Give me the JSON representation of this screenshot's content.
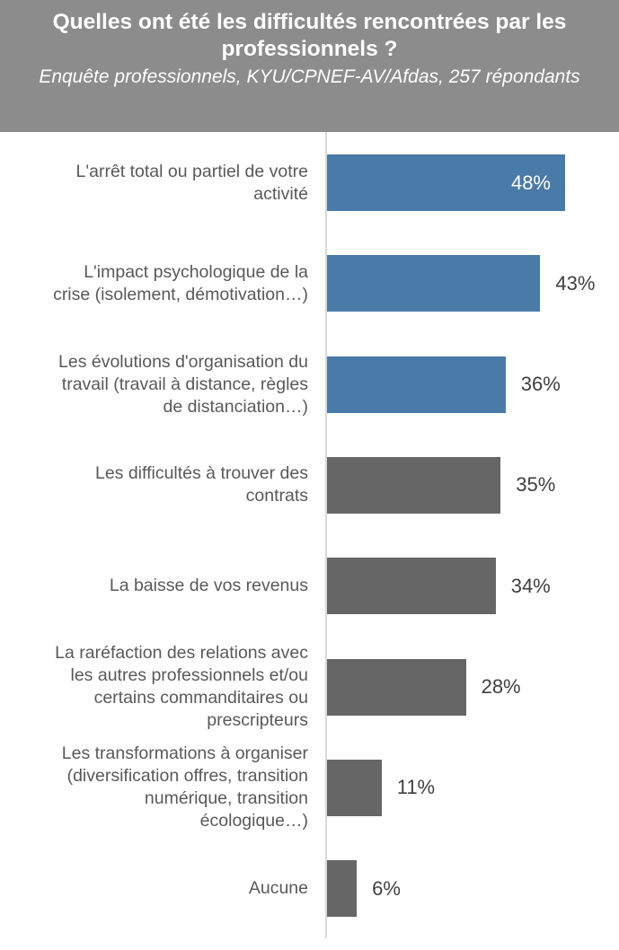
{
  "chart_data": {
    "type": "bar",
    "orientation": "horizontal",
    "title": "Quelles ont été les difficultés rencontrées par les professionnels ?",
    "subtitle": "Enquête professionnels, KYU/CPNEF-AV/Afdas, 257 répondants",
    "categories": [
      "L'arrêt total ou partiel de votre\nactivité",
      "L'impact psychologique de la\ncrise (isolement, démotivation…)",
      "Les évolutions d'organisation du\ntravail (travail à distance, règles\nde distanciation…)",
      "Les difficultés à trouver des\ncontrats",
      "La baisse de vos revenus",
      "La raréfaction des relations avec\nles autres professionnels et/ou\ncertains commanditaires ou\nprescripteurs",
      "Les transformations à organiser\n(diversification offres, transition\nnumérique, transition\nécologique…)",
      "Aucune"
    ],
    "values": [
      48,
      43,
      36,
      35,
      34,
      28,
      11,
      6
    ],
    "value_labels": [
      "48%",
      "43%",
      "36%",
      "35%",
      "34%",
      "28%",
      "11%",
      "6%"
    ],
    "bar_colors": [
      "#4a7aa7",
      "#4a7aa7",
      "#4a7aa7",
      "#666666",
      "#666666",
      "#666666",
      "#666666",
      "#666666"
    ],
    "xlim": [
      0,
      50
    ],
    "unit": "%",
    "grid": false
  },
  "colors": {
    "header_bg": "#8c8c8c",
    "highlight": "#4a7aa7",
    "default": "#666666"
  }
}
